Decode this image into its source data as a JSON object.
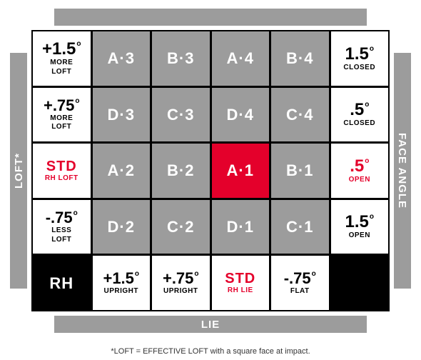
{
  "colors": {
    "gray": "#9c9c9c",
    "red": "#e4002b",
    "black": "#000000",
    "white": "#ffffff"
  },
  "bars": {
    "top_hidden": "",
    "left": "LOFT*",
    "right": "FACE ANGLE",
    "bottom": "LIE"
  },
  "loft_col": {
    "r1": {
      "value": "+1.5",
      "sub1": "MORE",
      "sub2": "LOFT"
    },
    "r2": {
      "value": "+.75",
      "sub1": "MORE",
      "sub2": "LOFT"
    },
    "r3": {
      "std": "STD",
      "sub": "RH LOFT"
    },
    "r4": {
      "value": "-.75",
      "sub1": "LESS",
      "sub2": "LOFT"
    }
  },
  "face_col": {
    "r1": {
      "value": "1.5",
      "sub": "CLOSED"
    },
    "r2": {
      "value": ".5",
      "sub": "CLOSED"
    },
    "r3": {
      "value": ".5",
      "sub": "OPEN"
    },
    "r4": {
      "value": "1.5",
      "sub": "OPEN"
    }
  },
  "hosel": {
    "r1": {
      "c2": "A·3",
      "c3": "B·3",
      "c4": "A·4",
      "c5": "B·4"
    },
    "r2": {
      "c2": "D·3",
      "c3": "C·3",
      "c4": "D·4",
      "c5": "C·4"
    },
    "r3": {
      "c2": "A·2",
      "c3": "B·2",
      "c4": "A·1",
      "c5": "B·1"
    },
    "r4": {
      "c2": "D·2",
      "c3": "C·2",
      "c4": "D·1",
      "c5": "C·1"
    }
  },
  "lie_row": {
    "rh": "RH",
    "c2": {
      "value": "+1.5",
      "sub": "UPRIGHT"
    },
    "c3": {
      "value": "+.75",
      "sub": "UPRIGHT"
    },
    "c4": {
      "std": "STD",
      "sub": "RH LIE"
    },
    "c5": {
      "value": "-.75",
      "sub": "FLAT"
    }
  },
  "footnote": "*LOFT = EFFECTIVE LOFT with a square face at impact.",
  "deg": "o"
}
